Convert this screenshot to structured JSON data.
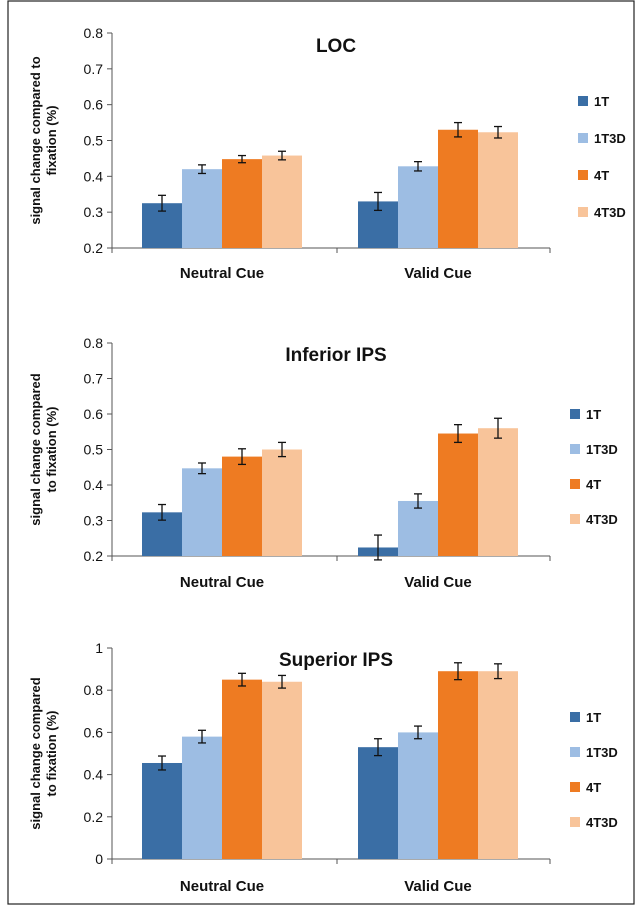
{
  "chart_data": [
    {
      "type": "bar",
      "title": "LOC",
      "ylabel": "signal change compared to fixation (%)",
      "ylabel_lines": [
        "signal change compared to",
        "fixation (%)"
      ],
      "ylim": [
        0.2,
        0.8
      ],
      "yticks": [
        0.2,
        0.3,
        0.4,
        0.5,
        0.6,
        0.7,
        0.8
      ],
      "ytick_labels": [
        "0.2",
        "0.3",
        "0.4",
        "0.5",
        "0.6",
        "0.7",
        "0.8"
      ],
      "categories": [
        "Neutral Cue",
        "Valid Cue"
      ],
      "series": [
        {
          "name": "1T",
          "color": "#3a6ea5",
          "values": [
            0.325,
            0.33
          ],
          "errors": [
            0.022,
            0.025
          ]
        },
        {
          "name": "1T3D",
          "color": "#9dbde3",
          "values": [
            0.42,
            0.428
          ],
          "errors": [
            0.012,
            0.013
          ]
        },
        {
          "name": "4T",
          "color": "#ee7b22",
          "values": [
            0.448,
            0.53
          ],
          "errors": [
            0.01,
            0.02
          ]
        },
        {
          "name": "4T3D",
          "color": "#f8c49a",
          "values": [
            0.458,
            0.523
          ],
          "errors": [
            0.012,
            0.016
          ]
        }
      ],
      "legend_position": "right",
      "grid": false
    },
    {
      "type": "bar",
      "title": "Inferior IPS",
      "ylabel": "signal change compared to fixation (%)",
      "ylabel_lines": [
        "signal change compared",
        "to fixation (%)"
      ],
      "ylim": [
        0.2,
        0.8
      ],
      "yticks": [
        0.2,
        0.3,
        0.4,
        0.5,
        0.6,
        0.7,
        0.8
      ],
      "ytick_labels": [
        "0.2",
        "0.3",
        "0.4",
        "0.5",
        "0.6",
        "0.7",
        "0.8"
      ],
      "categories": [
        "Neutral Cue",
        "Valid Cue"
      ],
      "series": [
        {
          "name": "1T",
          "color": "#3a6ea5",
          "values": [
            0.323,
            0.224
          ],
          "errors": [
            0.022,
            0.035
          ]
        },
        {
          "name": "1T3D",
          "color": "#9dbde3",
          "values": [
            0.447,
            0.355
          ],
          "errors": [
            0.015,
            0.02
          ]
        },
        {
          "name": "4T",
          "color": "#ee7b22",
          "values": [
            0.48,
            0.545
          ],
          "errors": [
            0.022,
            0.025
          ]
        },
        {
          "name": "4T3D",
          "color": "#f8c49a",
          "values": [
            0.5,
            0.56
          ],
          "errors": [
            0.02,
            0.028
          ]
        }
      ],
      "legend_position": "right",
      "grid": false
    },
    {
      "type": "bar",
      "title": "Superior IPS",
      "ylabel": "signal change compared to fixation (%)",
      "ylabel_lines": [
        "signal change compared",
        "to fixation (%)"
      ],
      "ylim": [
        0,
        1
      ],
      "yticks": [
        0,
        0.2,
        0.4,
        0.6,
        0.8,
        1
      ],
      "ytick_labels": [
        "0",
        "0.2",
        "0.4",
        "0.6",
        "0.8",
        "1"
      ],
      "categories": [
        "Neutral Cue",
        "Valid Cue"
      ],
      "series": [
        {
          "name": "1T",
          "color": "#3a6ea5",
          "values": [
            0.455,
            0.53
          ],
          "errors": [
            0.033,
            0.04
          ]
        },
        {
          "name": "1T3D",
          "color": "#9dbde3",
          "values": [
            0.58,
            0.6
          ],
          "errors": [
            0.03,
            0.03
          ]
        },
        {
          "name": "4T",
          "color": "#ee7b22",
          "values": [
            0.85,
            0.89
          ],
          "errors": [
            0.03,
            0.04
          ]
        },
        {
          "name": "4T3D",
          "color": "#f8c49a",
          "values": [
            0.84,
            0.89
          ],
          "errors": [
            0.03,
            0.035
          ]
        }
      ],
      "legend_position": "right",
      "grid": false
    }
  ]
}
